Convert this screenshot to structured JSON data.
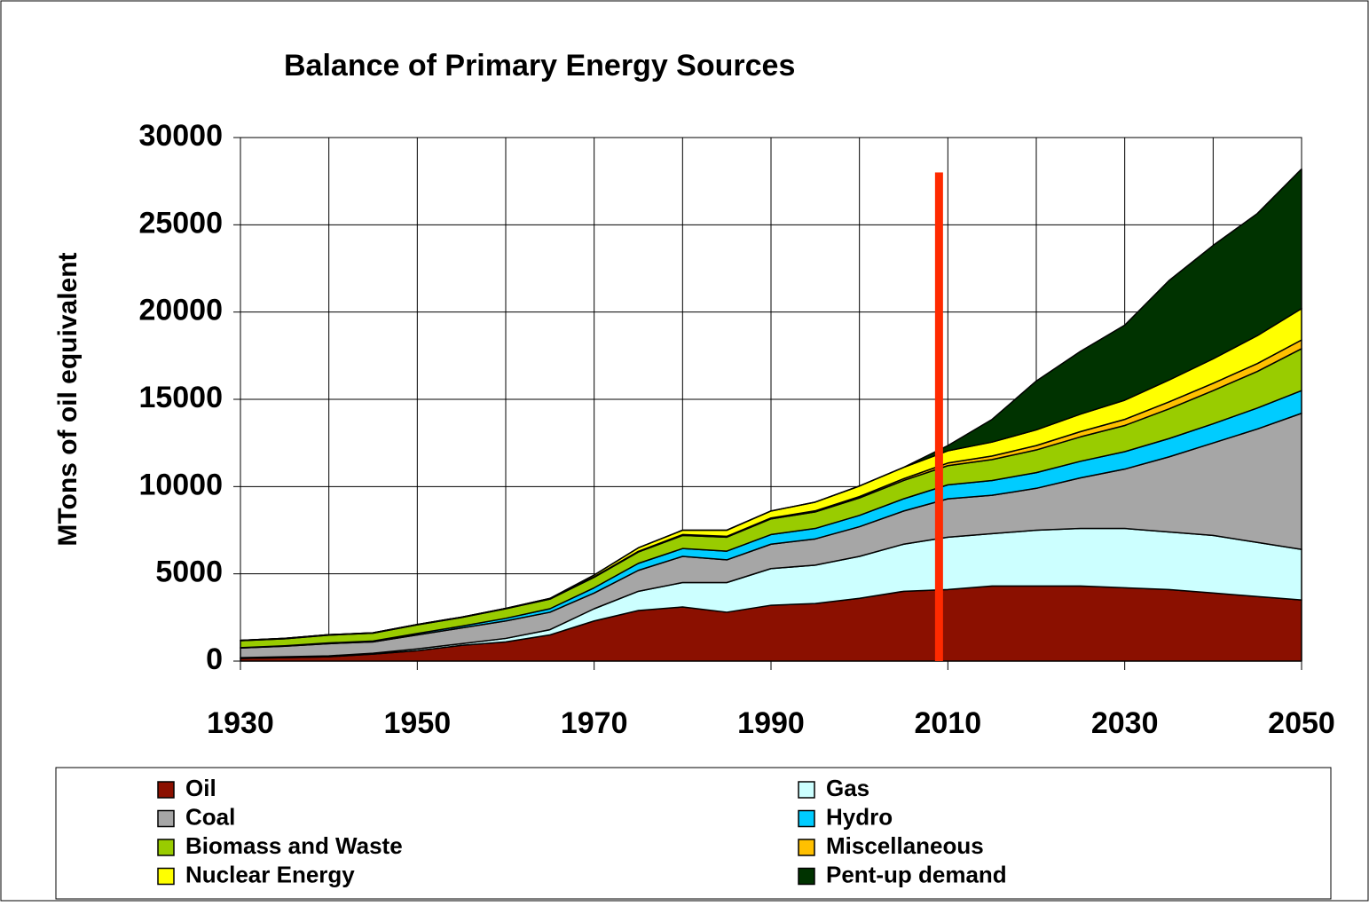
{
  "chart_data": {
    "type": "stacked_area",
    "title": "Balance of Primary Energy Sources",
    "y_label": "MTons of oil equivalent",
    "x": [
      1930,
      1935,
      1940,
      1945,
      1950,
      1955,
      1960,
      1965,
      1970,
      1975,
      1980,
      1985,
      1990,
      1995,
      2000,
      2005,
      2010,
      2015,
      2020,
      2025,
      2030,
      2035,
      2040,
      2045,
      2050
    ],
    "series": [
      {
        "name": "Oil",
        "color": "#8b1000",
        "values": [
          150,
          200,
          250,
          400,
          600,
          900,
          1100,
          1500,
          2300,
          2900,
          3100,
          2800,
          3200,
          3300,
          3600,
          4000,
          4100,
          4300,
          4300,
          4300,
          4200,
          4100,
          3900,
          3700,
          3500
        ]
      },
      {
        "name": "Gas",
        "color": "#ccffff",
        "values": [
          50,
          50,
          50,
          50,
          100,
          100,
          200,
          300,
          700,
          1100,
          1400,
          1700,
          2100,
          2200,
          2400,
          2700,
          3000,
          3000,
          3200,
          3300,
          3400,
          3300,
          3300,
          3100,
          2900
        ]
      },
      {
        "name": "Coal",
        "color": "#a6a6a6",
        "values": [
          550,
          600,
          700,
          650,
          800,
          900,
          1000,
          1000,
          900,
          1200,
          1500,
          1300,
          1400,
          1500,
          1700,
          1900,
          2200,
          2200,
          2400,
          2900,
          3400,
          4300,
          5300,
          6500,
          7800
        ]
      },
      {
        "name": "Hydro",
        "color": "#00ccff",
        "values": [
          20,
          30,
          40,
          50,
          80,
          100,
          150,
          200,
          300,
          400,
          450,
          500,
          550,
          600,
          650,
          700,
          800,
          850,
          900,
          950,
          1000,
          1050,
          1100,
          1200,
          1300
        ]
      },
      {
        "name": "Biomass and Waste",
        "color": "#99cc00",
        "values": [
          400,
          400,
          450,
          450,
          500,
          500,
          550,
          550,
          600,
          650,
          750,
          800,
          900,
          950,
          1000,
          1050,
          1100,
          1200,
          1300,
          1400,
          1500,
          1700,
          1900,
          2100,
          2400
        ]
      },
      {
        "name": "Miscellaneous",
        "color": "#ffc000",
        "values": [
          20,
          20,
          20,
          20,
          20,
          20,
          20,
          20,
          30,
          40,
          50,
          50,
          50,
          60,
          80,
          100,
          150,
          200,
          250,
          300,
          350,
          400,
          420,
          450,
          500
        ]
      },
      {
        "name": "Nuclear Energy",
        "color": "#ffff00",
        "values": [
          0,
          0,
          0,
          0,
          0,
          0,
          0,
          20,
          100,
          200,
          250,
          350,
          400,
          500,
          600,
          650,
          700,
          800,
          900,
          1000,
          1100,
          1250,
          1400,
          1600,
          1800
        ]
      },
      {
        "name": "Pent-up demand",
        "color": "#003300",
        "values": [
          0,
          0,
          0,
          0,
          0,
          0,
          0,
          0,
          0,
          0,
          0,
          0,
          0,
          0,
          0,
          0,
          300,
          1300,
          2800,
          3600,
          4300,
          5700,
          6500,
          7000,
          8000
        ]
      }
    ],
    "xlim": [
      1930,
      2050
    ],
    "xticks": [
      1930,
      1950,
      1970,
      1990,
      2010,
      2030,
      2050
    ],
    "xgrid": [
      1940,
      1960,
      1980,
      2000,
      2020,
      2040
    ],
    "ylim": [
      0,
      30000
    ],
    "yticks": [
      0,
      5000,
      10000,
      15000,
      20000,
      25000,
      30000
    ],
    "grid": true,
    "marker_x": 2009,
    "marker_top": 28000,
    "marker_color": "#ff2a00"
  }
}
